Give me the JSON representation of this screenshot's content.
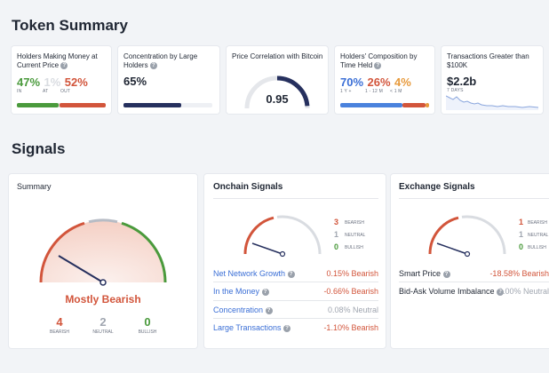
{
  "token_summary": {
    "title": "Token Summary",
    "cards": {
      "holders": {
        "title": "Holders Making Money at Current Price",
        "in_value": "47%",
        "in_label": "IN",
        "at_value": "1%",
        "at_label": "AT",
        "out_value": "52%",
        "out_label": "OUT",
        "in_frac": 0.47,
        "at_frac": 0.01,
        "out_frac": 0.52
      },
      "concentration": {
        "title": "Concentration by Large Holders",
        "value": "65%",
        "fill_frac": 0.65
      },
      "correlation": {
        "title": "Price Correlation with Bitcoin",
        "value": "0.95",
        "gauge_frac": 0.95
      },
      "composition": {
        "title": "Holders' Composition by Time Held",
        "v1": "70%",
        "l1": "1 Y +",
        "v2": "26%",
        "l2": "1 - 12 M",
        "v3": "4%",
        "l3": "< 1 M",
        "f1": 0.7,
        "f2": 0.26,
        "f3": 0.04
      },
      "transactions": {
        "title": "Transactions Greater than $100K",
        "value": "$2.2b",
        "sub": "7 DAYS"
      }
    }
  },
  "signals": {
    "title": "Signals",
    "summary": {
      "title": "Summary",
      "verdict": "Mostly Bearish",
      "bearish_count": "4",
      "bearish_label": "BEARISH",
      "neutral_count": "2",
      "neutral_label": "NEUTRAL",
      "bullish_count": "0",
      "bullish_label": "BULLISH"
    },
    "onchain": {
      "title": "Onchain Signals",
      "bearish_count": "3",
      "bearish_label": "BEARISH",
      "neutral_count": "1",
      "neutral_label": "NEUTRAL",
      "bullish_count": "0",
      "bullish_label": "BULLISH",
      "rows": [
        {
          "label": "Net Network Growth",
          "pct": "0.15%",
          "signal": "Bearish"
        },
        {
          "label": "In the Money",
          "pct": "-0.66%",
          "signal": "Bearish"
        },
        {
          "label": "Concentration",
          "pct": "0.08%",
          "signal": "Neutral"
        },
        {
          "label": "Large Transactions",
          "pct": "-1.10%",
          "signal": "Bearish"
        }
      ]
    },
    "exchange": {
      "title": "Exchange Signals",
      "bearish_count": "1",
      "bearish_label": "BEARISH",
      "neutral_count": "1",
      "neutral_label": "NEUTRAL",
      "bullish_count": "0",
      "bullish_label": "BULLISH",
      "rows": [
        {
          "label": "Smart Price",
          "pct": "-18.58%",
          "signal": "Bearish"
        },
        {
          "label": "Bid-Ask Volume Imbalance",
          "pct": "0.00%",
          "signal": "Neutral"
        }
      ]
    }
  },
  "colors": {
    "bearish": "#d2553b",
    "neutral": "#a0a6b0",
    "bullish": "#4a9a3c",
    "navy": "#26305e",
    "link": "#3b6fd6"
  }
}
